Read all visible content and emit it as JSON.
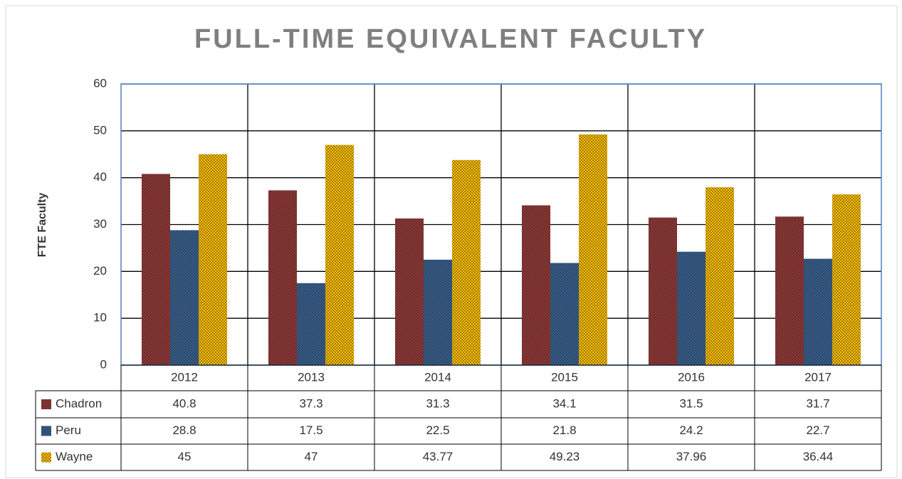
{
  "chart_data": {
    "type": "bar",
    "title": "FULL-TIME EQUIVALENT FACULTY",
    "y_label": "FTE Faculty",
    "categories": [
      "2012",
      "2013",
      "2014",
      "2015",
      "2016",
      "2017"
    ],
    "series": [
      {
        "name": "Chadron",
        "color": "#953735",
        "values": [
          40.8,
          37.3,
          31.3,
          34.1,
          31.5,
          31.7
        ]
      },
      {
        "name": "Peru",
        "color": "#376092",
        "values": [
          28.8,
          17.5,
          22.5,
          21.8,
          24.2,
          22.7
        ]
      },
      {
        "name": "Wayne",
        "color": "#ffc000",
        "values": [
          45,
          47,
          43.77,
          49.23,
          37.96,
          36.44
        ]
      }
    ],
    "ylim": [
      0,
      60
    ],
    "yticks": [
      0,
      10,
      20,
      30,
      40,
      50,
      60
    ],
    "grid": true
  }
}
